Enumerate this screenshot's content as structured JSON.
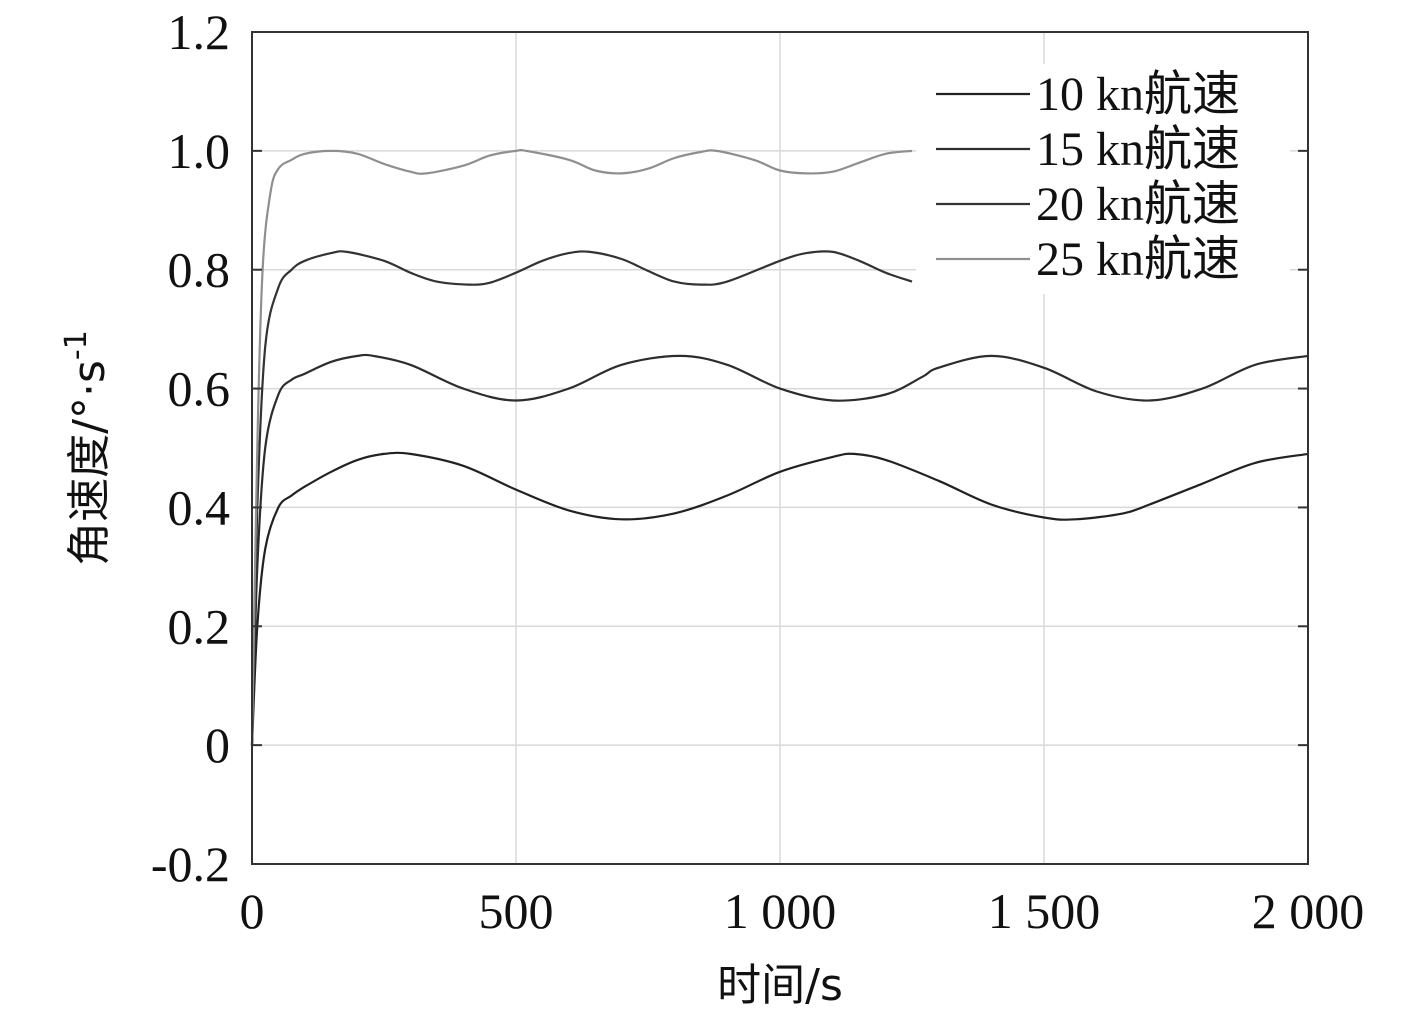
{
  "chart_data": {
    "type": "line",
    "xlabel": "时间/s",
    "ylabel": "角速度/°·s",
    "ylabel_sup": "-1",
    "xlim": [
      0,
      2000
    ],
    "ylim": [
      -0.2,
      1.2
    ],
    "xticks": [
      0,
      500,
      1000,
      1500,
      2000
    ],
    "xtick_labels": [
      "0",
      "500",
      "1 000",
      "1 500",
      "2 000"
    ],
    "yticks": [
      -0.2,
      0,
      0.2,
      0.4,
      0.6,
      0.8,
      1.0,
      1.2
    ],
    "ytick_labels": [
      "-0.2",
      "0",
      "0.2",
      "0.4",
      "0.6",
      "0.8",
      "1.0",
      "1.2"
    ],
    "grid": true,
    "legend_position": "top-right",
    "series": [
      {
        "name": "10 kn航速",
        "color": "#222222",
        "x": [
          0,
          10,
          25,
          50,
          75,
          100,
          150,
          200,
          250,
          300,
          400,
          500,
          600,
          700,
          800,
          900,
          1000,
          1100,
          1140,
          1200,
          1300,
          1400,
          1500,
          1560,
          1650,
          1700,
          1800,
          1900,
          2000
        ],
        "y": [
          0,
          0.2,
          0.33,
          0.4,
          0.42,
          0.435,
          0.46,
          0.48,
          0.49,
          0.49,
          0.47,
          0.43,
          0.395,
          0.38,
          0.39,
          0.42,
          0.46,
          0.485,
          0.49,
          0.48,
          0.445,
          0.405,
          0.383,
          0.38,
          0.39,
          0.405,
          0.44,
          0.475,
          0.49
        ]
      },
      {
        "name": "15 kn航速",
        "color": "#2d2d2d",
        "x": [
          0,
          10,
          25,
          50,
          75,
          100,
          150,
          200,
          230,
          300,
          400,
          500,
          600,
          700,
          810,
          900,
          1000,
          1100,
          1200,
          1270,
          1300,
          1400,
          1500,
          1600,
          1700,
          1800,
          1900,
          2000
        ],
        "y": [
          0,
          0.3,
          0.5,
          0.59,
          0.615,
          0.625,
          0.645,
          0.655,
          0.655,
          0.64,
          0.6,
          0.58,
          0.6,
          0.64,
          0.655,
          0.64,
          0.6,
          0.58,
          0.59,
          0.62,
          0.635,
          0.655,
          0.635,
          0.595,
          0.58,
          0.6,
          0.64,
          0.655
        ]
      },
      {
        "name": "20 kn航速",
        "color": "#333333",
        "x": [
          0,
          10,
          25,
          50,
          75,
          100,
          150,
          180,
          250,
          300,
          350,
          410,
          450,
          500,
          550,
          600,
          640,
          700,
          750,
          800,
          850,
          900,
          1000,
          1050,
          1100,
          1150,
          1200,
          1250
        ],
        "y": [
          0,
          0.4,
          0.67,
          0.77,
          0.8,
          0.815,
          0.828,
          0.83,
          0.815,
          0.795,
          0.78,
          0.775,
          0.778,
          0.795,
          0.815,
          0.828,
          0.83,
          0.818,
          0.798,
          0.78,
          0.775,
          0.78,
          0.815,
          0.828,
          0.83,
          0.815,
          0.795,
          0.78
        ]
      },
      {
        "name": "25 kn航速",
        "color": "#8f8f8f",
        "x": [
          0,
          10,
          20,
          35,
          50,
          75,
          100,
          150,
          200,
          250,
          300,
          330,
          400,
          450,
          500,
          520,
          600,
          650,
          700,
          750,
          800,
          850,
          880,
          950,
          1000,
          1050,
          1100,
          1150,
          1200,
          1250
        ],
        "y": [
          0,
          0.5,
          0.8,
          0.93,
          0.97,
          0.985,
          0.995,
          1.0,
          0.995,
          0.978,
          0.965,
          0.962,
          0.975,
          0.992,
          1.0,
          1.0,
          0.985,
          0.967,
          0.962,
          0.97,
          0.988,
          0.998,
          1.0,
          0.985,
          0.967,
          0.962,
          0.965,
          0.98,
          0.995,
          1.0
        ]
      }
    ]
  }
}
